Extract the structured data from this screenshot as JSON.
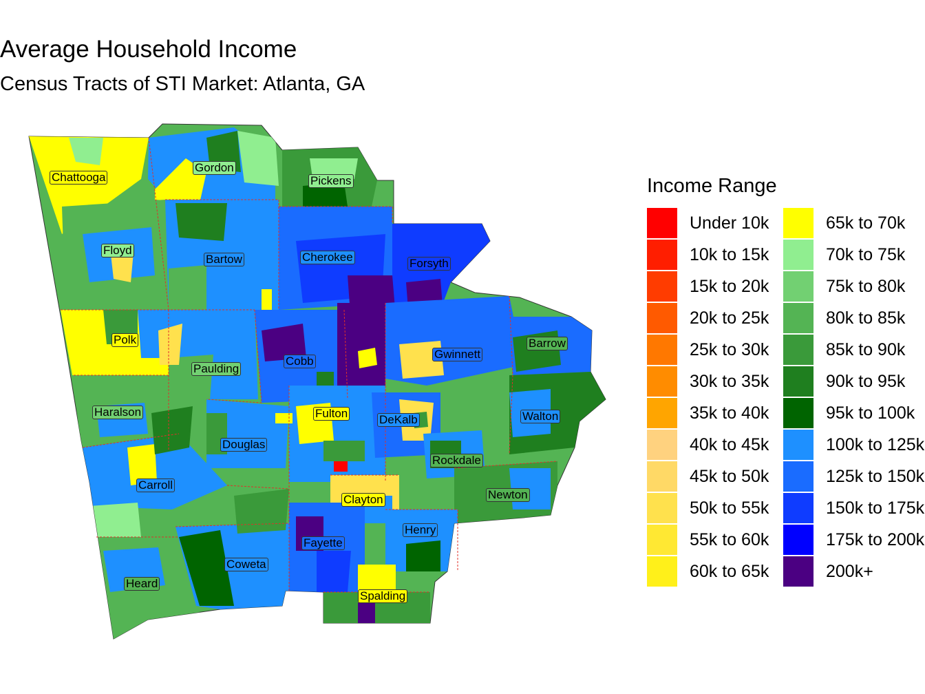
{
  "title": "Average Household Income",
  "subtitle": "Census Tracts of STI Market: Atlanta, GA",
  "legend": {
    "title": "Income Range",
    "items": [
      {
        "label": "Under 10k",
        "color": "#ff0000"
      },
      {
        "label": "10k to 15k",
        "color": "#ff1e00"
      },
      {
        "label": "15k to 20k",
        "color": "#ff3c00"
      },
      {
        "label": "20k to 25k",
        "color": "#ff5a00"
      },
      {
        "label": "25k to 30k",
        "color": "#ff7800"
      },
      {
        "label": "30k to 35k",
        "color": "#ff8c00"
      },
      {
        "label": "35k to 40k",
        "color": "#ffa500"
      },
      {
        "label": "40k to 45k",
        "color": "#ffd27f"
      },
      {
        "label": "45k to 50k",
        "color": "#ffd966"
      },
      {
        "label": "50k to 55k",
        "color": "#ffe14d"
      },
      {
        "label": "55k to 60k",
        "color": "#ffe833"
      },
      {
        "label": "60k to 65k",
        "color": "#fff01a"
      },
      {
        "label": "65k to 70k",
        "color": "#ffff00"
      },
      {
        "label": "70k to 75k",
        "color": "#90ee90"
      },
      {
        "label": "75k to 80k",
        "color": "#72d072"
      },
      {
        "label": "80k to 85k",
        "color": "#54b454"
      },
      {
        "label": "85k to 90k",
        "color": "#3a9a3a"
      },
      {
        "label": "90k to 95k",
        "color": "#1f7f1f"
      },
      {
        "label": "95k to 100k",
        "color": "#006400"
      },
      {
        "label": "100k to 125k",
        "color": "#1e90ff"
      },
      {
        "label": "125k to 150k",
        "color": "#1a6cff"
      },
      {
        "label": "150k to 175k",
        "color": "#0f3cff"
      },
      {
        "label": "175k to 200k",
        "color": "#0000ff"
      },
      {
        "label": "200k+",
        "color": "#4b0082"
      }
    ]
  },
  "counties": [
    {
      "name": "Chattooga"
    },
    {
      "name": "Gordon"
    },
    {
      "name": "Pickens"
    },
    {
      "name": "Floyd"
    },
    {
      "name": "Bartow"
    },
    {
      "name": "Cherokee"
    },
    {
      "name": "Forsyth"
    },
    {
      "name": "Barrow"
    },
    {
      "name": "Polk"
    },
    {
      "name": "Cobb"
    },
    {
      "name": "Gwinnett"
    },
    {
      "name": "Paulding"
    },
    {
      "name": "Haralson"
    },
    {
      "name": "Fulton"
    },
    {
      "name": "DeKalb"
    },
    {
      "name": "Walton"
    },
    {
      "name": "Douglas"
    },
    {
      "name": "Rockdale"
    },
    {
      "name": "Carroll"
    },
    {
      "name": "Newton"
    },
    {
      "name": "Clayton"
    },
    {
      "name": "Henry"
    },
    {
      "name": "Fayette"
    },
    {
      "name": "Coweta"
    },
    {
      "name": "Heard"
    },
    {
      "name": "Spalding"
    }
  ]
}
